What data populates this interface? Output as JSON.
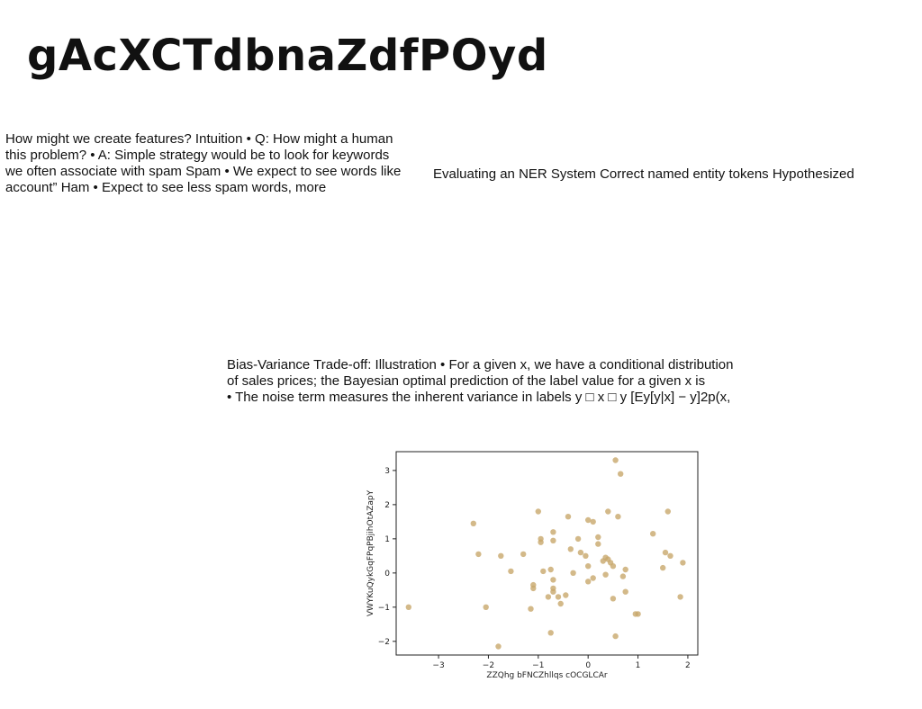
{
  "page": {
    "title": "gAcXCTdbnaZdfPOyd"
  },
  "text_blocks": {
    "left": "How might we create features? Intuition • Q: How might a human\nthis problem? • A: Simple strategy would be to look for keywords\nwe often associate with spam Spam • We expect to see words like\naccount” Ham • Expect to see less spam words, more",
    "right": "Evaluating an NER System Correct named entity tokens Hypothesized",
    "middle": "Bias-Variance Trade-off: Illustration • For a given x, we have a conditional distribution\nof sales prices; the Bayesian optimal prediction of the label value for a given x is\n• The noise term measures the inherent variance in labels y □ x □ y [Ey[y|x] − y]2p(x,"
  },
  "chart_data": {
    "type": "scatter",
    "title": "",
    "xlabel": "ZZQhg bFNCZhllqs cOCGLCAr",
    "ylabel": "VWYKuQykGqFPqPBjihOtAZapY",
    "xlim": [
      -3.85,
      2.2
    ],
    "ylim": [
      -2.4,
      3.55
    ],
    "xticks": [
      -3,
      -2,
      -1,
      0,
      1,
      2
    ],
    "yticks": [
      -2,
      -1,
      0,
      1,
      2,
      3
    ],
    "grid": false,
    "marker_color": "#c8a86b",
    "points": [
      [
        -3.6,
        -1.0
      ],
      [
        -2.3,
        1.45
      ],
      [
        -2.2,
        0.55
      ],
      [
        -2.05,
        -1.0
      ],
      [
        -1.8,
        -2.15
      ],
      [
        -1.75,
        0.5
      ],
      [
        -1.55,
        0.05
      ],
      [
        -1.3,
        0.55
      ],
      [
        -1.15,
        -1.05
      ],
      [
        -1.1,
        -0.35
      ],
      [
        -1.1,
        -0.45
      ],
      [
        -1.0,
        1.8
      ],
      [
        -0.95,
        1.0
      ],
      [
        -0.95,
        0.9
      ],
      [
        -0.9,
        0.05
      ],
      [
        -0.8,
        -0.7
      ],
      [
        -0.75,
        0.1
      ],
      [
        -0.75,
        -1.75
      ],
      [
        -0.7,
        1.2
      ],
      [
        -0.7,
        0.95
      ],
      [
        -0.7,
        -0.45
      ],
      [
        -0.7,
        -0.55
      ],
      [
        -0.7,
        -0.2
      ],
      [
        -0.6,
        -0.7
      ],
      [
        -0.55,
        -0.9
      ],
      [
        -0.45,
        -0.65
      ],
      [
        -0.4,
        1.65
      ],
      [
        -0.35,
        0.7
      ],
      [
        -0.3,
        0.0
      ],
      [
        -0.2,
        1.0
      ],
      [
        -0.15,
        0.6
      ],
      [
        -0.05,
        0.5
      ],
      [
        0.0,
        0.2
      ],
      [
        0.0,
        -0.25
      ],
      [
        0.0,
        1.55
      ],
      [
        0.1,
        1.5
      ],
      [
        0.1,
        -0.15
      ],
      [
        0.2,
        1.05
      ],
      [
        0.2,
        0.85
      ],
      [
        0.3,
        0.35
      ],
      [
        0.35,
        -0.05
      ],
      [
        0.35,
        0.45
      ],
      [
        0.4,
        1.8
      ],
      [
        0.4,
        0.4
      ],
      [
        0.45,
        0.3
      ],
      [
        0.5,
        0.2
      ],
      [
        0.5,
        -0.75
      ],
      [
        0.55,
        3.3
      ],
      [
        0.55,
        -1.85
      ],
      [
        0.6,
        1.65
      ],
      [
        0.65,
        2.9
      ],
      [
        0.7,
        -0.1
      ],
      [
        0.75,
        0.1
      ],
      [
        0.75,
        -0.55
      ],
      [
        0.95,
        -1.2
      ],
      [
        1.0,
        -1.2
      ],
      [
        1.3,
        1.15
      ],
      [
        1.5,
        0.15
      ],
      [
        1.55,
        0.6
      ],
      [
        1.6,
        1.8
      ],
      [
        1.65,
        0.5
      ],
      [
        1.85,
        -0.7
      ],
      [
        1.9,
        0.3
      ]
    ]
  }
}
